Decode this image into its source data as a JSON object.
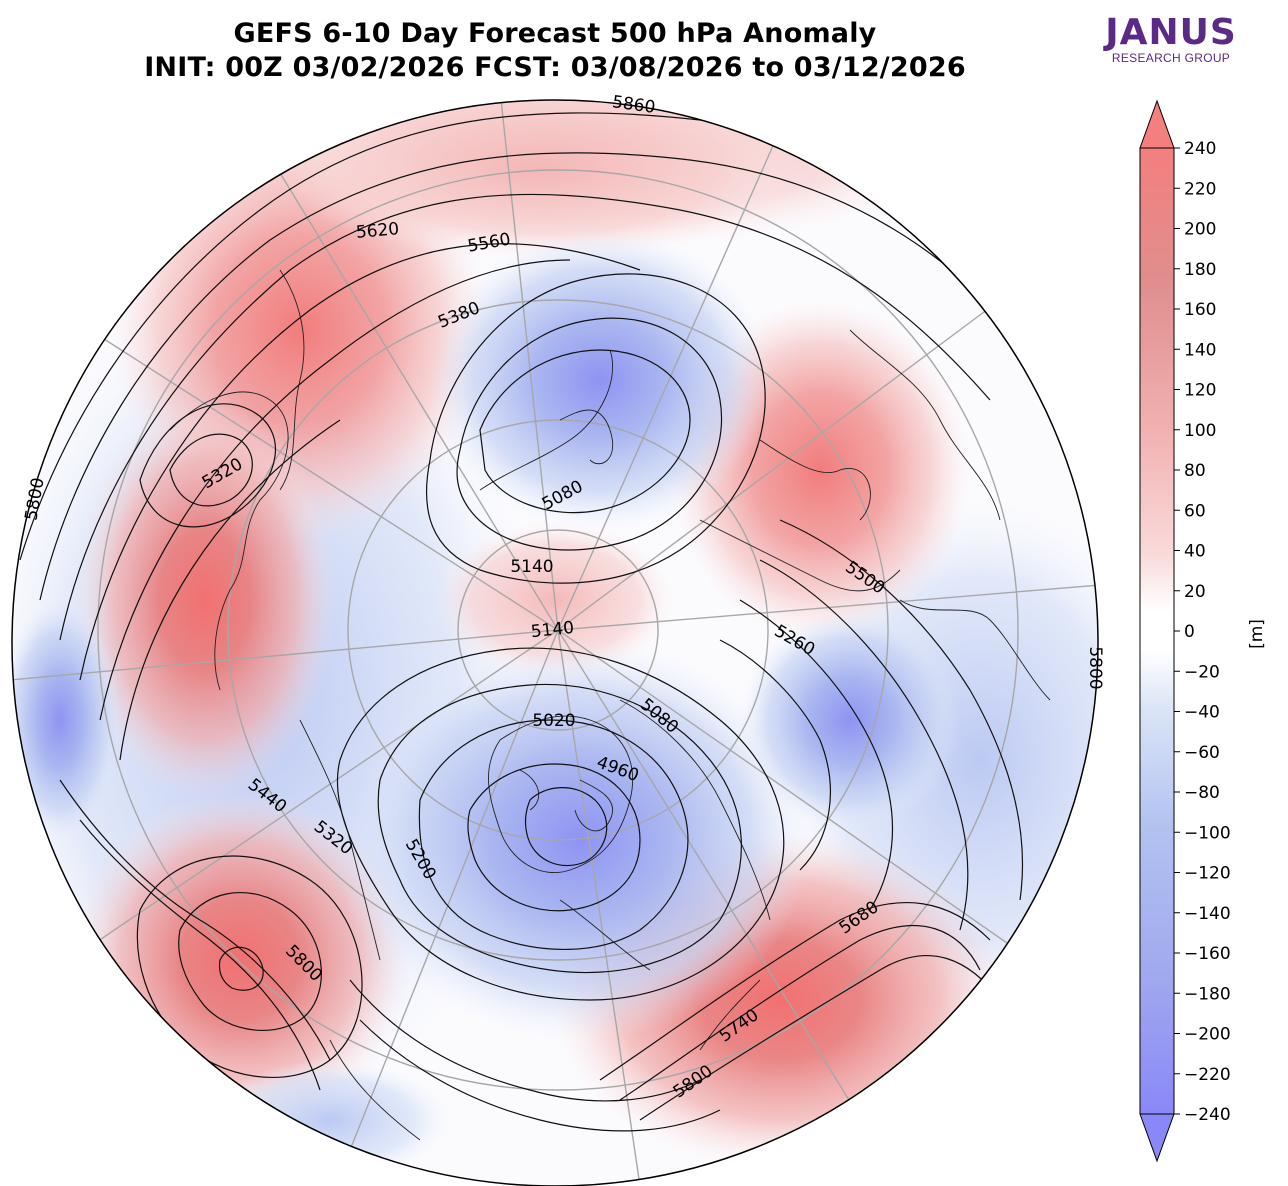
{
  "title_line1": "GEFS 6-10 Day Forecast 500 hPa Anomaly",
  "title_line2": "INIT: 00Z 03/02/2026    FCST: 03/08/2026 to 03/12/2026",
  "logo": {
    "name": "JANUS",
    "subtitle": "RESEARCH GROUP"
  },
  "colorbar": {
    "unit_label": "[m]",
    "ticks": [
      "240",
      "220",
      "200",
      "180",
      "160",
      "140",
      "120",
      "100",
      "80",
      "60",
      "40",
      "20",
      "0",
      "−20",
      "−40",
      "−60",
      "−80",
      "−100",
      "−120",
      "−140",
      "−160",
      "−180",
      "−200",
      "−220",
      "−240"
    ],
    "positive_color": "#f47f7f",
    "negative_color": "#8b8cf6"
  },
  "contour_labels": [
    {
      "text": "5860",
      "angle": 8
    },
    {
      "text": "5620",
      "angle": -5
    },
    {
      "text": "5560",
      "angle": -10
    },
    {
      "text": "5380",
      "angle": -22
    },
    {
      "text": "5320",
      "angle": -30
    },
    {
      "text": "5800",
      "angle": -80
    },
    {
      "text": "5080",
      "angle": -28
    },
    {
      "text": "5140",
      "angle": 0
    },
    {
      "text": "5140",
      "angle": -6
    },
    {
      "text": "5500",
      "angle": 35
    },
    {
      "text": "5260",
      "angle": 30
    },
    {
      "text": "5800",
      "angle": 90
    },
    {
      "text": "5080",
      "angle": 40
    },
    {
      "text": "5020",
      "angle": 0
    },
    {
      "text": "4960",
      "angle": 20
    },
    {
      "text": "5440",
      "angle": 38
    },
    {
      "text": "5320",
      "angle": 38
    },
    {
      "text": "5200",
      "angle": 60
    },
    {
      "text": "5800",
      "angle": 45
    },
    {
      "text": "5680",
      "angle": -35
    },
    {
      "text": "5740",
      "angle": -35
    },
    {
      "text": "5800",
      "angle": -35
    }
  ]
}
